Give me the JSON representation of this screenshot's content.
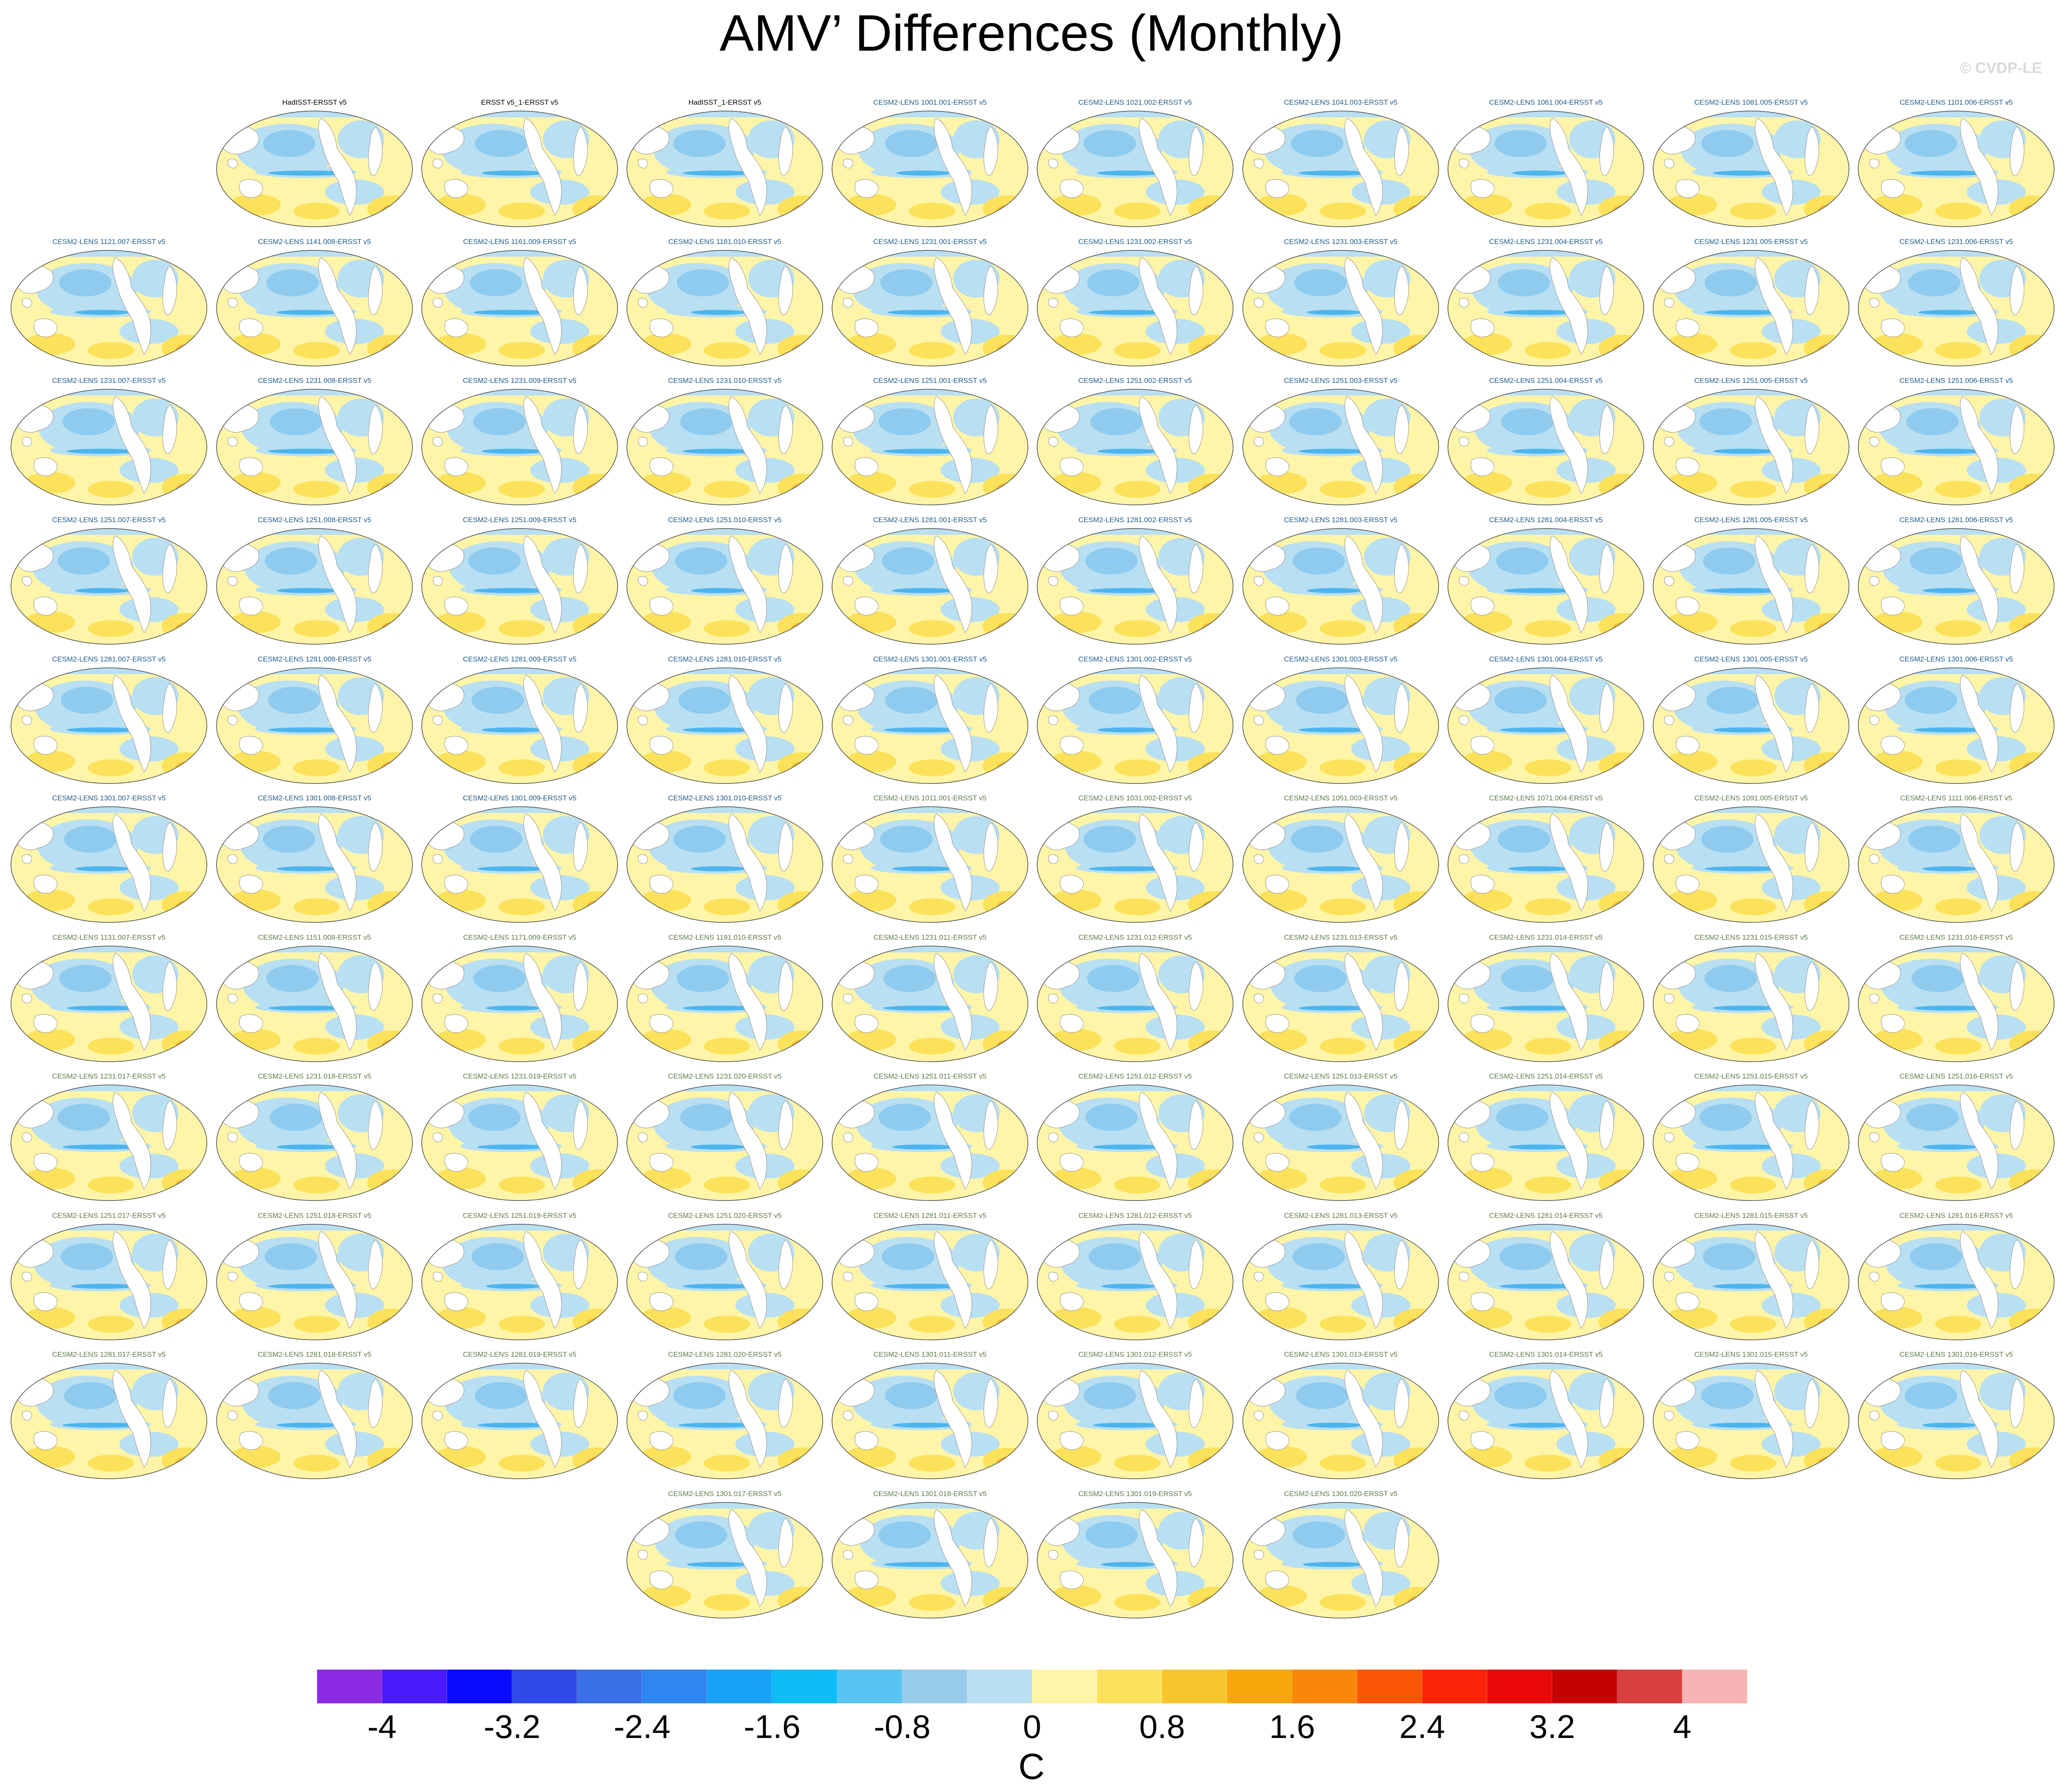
{
  "title": "AMV’ Differences (Monthly)",
  "credit": "© CVDP-LE",
  "colors": {
    "background": "#ffffff",
    "map_ocean_base": "#fff5a8",
    "map_blue_light": "#b9dff2",
    "map_blue_mid": "#8ecbee",
    "map_blue_dark": "#4db5ee",
    "map_warm": "#fbe25a",
    "map_warm_dark": "#f6b92f",
    "land": "#ffffff",
    "coast": "#8c8c8c"
  },
  "panels": [
    {
      "label": "HadISST-ERSST v5",
      "style": "obs"
    },
    {
      "label": "ERSST v5_1-ERSST v5",
      "style": "obs"
    },
    {
      "label": "HadISST_1-ERSST v5",
      "style": "obs"
    },
    {
      "label": "CESM2-LENS 1001.001-ERSST v5",
      "style": "c1"
    },
    {
      "label": "CESM2-LENS 1021.002-ERSST v5",
      "style": "c1"
    },
    {
      "label": "CESM2-LENS 1041.003-ERSST v5",
      "style": "c1"
    },
    {
      "label": "CESM2-LENS 1061.004-ERSST v5",
      "style": "c1"
    },
    {
      "label": "CESM2-LENS 1081.005-ERSST v5",
      "style": "c1"
    },
    {
      "label": "CESM2-LENS 1101.006-ERSST v5",
      "style": "c1"
    },
    {
      "label": "CESM2-LENS 1121.007-ERSST v5",
      "style": "c1"
    },
    {
      "label": "CESM2-LENS 1141.008-ERSST v5",
      "style": "c1"
    },
    {
      "label": "CESM2-LENS 1161.009-ERSST v5",
      "style": "c1"
    },
    {
      "label": "CESM2-LENS 1181.010-ERSST v5",
      "style": "c1"
    },
    {
      "label": "CESM2-LENS 1231.001-ERSST v5",
      "style": "c1"
    },
    {
      "label": "CESM2-LENS 1231.002-ERSST v5",
      "style": "c1"
    },
    {
      "label": "CESM2-LENS 1231.003-ERSST v5",
      "style": "c1"
    },
    {
      "label": "CESM2-LENS 1231.004-ERSST v5",
      "style": "c1"
    },
    {
      "label": "CESM2-LENS 1231.005-ERSST v5",
      "style": "c1"
    },
    {
      "label": "CESM2-LENS 1231.006-ERSST v5",
      "style": "c1"
    },
    {
      "label": "CESM2-LENS 1231.007-ERSST v5",
      "style": "c1"
    },
    {
      "label": "CESM2-LENS 1231.008-ERSST v5",
      "style": "c1"
    },
    {
      "label": "CESM2-LENS 1231.009-ERSST v5",
      "style": "c1"
    },
    {
      "label": "CESM2-LENS 1231.010-ERSST v5",
      "style": "c1"
    },
    {
      "label": "CESM2-LENS 1251.001-ERSST v5",
      "style": "c1"
    },
    {
      "label": "CESM2-LENS 1251.002-ERSST v5",
      "style": "c1"
    },
    {
      "label": "CESM2-LENS 1251.003-ERSST v5",
      "style": "c1"
    },
    {
      "label": "CESM2-LENS 1251.004-ERSST v5",
      "style": "c1"
    },
    {
      "label": "CESM2-LENS 1251.005-ERSST v5",
      "style": "c1"
    },
    {
      "label": "CESM2-LENS 1251.006-ERSST v5",
      "style": "c1"
    },
    {
      "label": "CESM2-LENS 1251.007-ERSST v5",
      "style": "c1"
    },
    {
      "label": "CESM2-LENS 1251.008-ERSST v5",
      "style": "c1"
    },
    {
      "label": "CESM2-LENS 1251.009-ERSST v5",
      "style": "c1"
    },
    {
      "label": "CESM2-LENS 1251.010-ERSST v5",
      "style": "c1"
    },
    {
      "label": "CESM2-LENS 1281.001-ERSST v5",
      "style": "c1"
    },
    {
      "label": "CESM2-LENS 1281.002-ERSST v5",
      "style": "c1"
    },
    {
      "label": "CESM2-LENS 1281.003-ERSST v5",
      "style": "c1"
    },
    {
      "label": "CESM2-LENS 1281.004-ERSST v5",
      "style": "c1"
    },
    {
      "label": "CESM2-LENS 1281.005-ERSST v5",
      "style": "c1"
    },
    {
      "label": "CESM2-LENS 1281.006-ERSST v5",
      "style": "c1"
    },
    {
      "label": "CESM2-LENS 1281.007-ERSST v5",
      "style": "c1"
    },
    {
      "label": "CESM2-LENS 1281.008-ERSST v5",
      "style": "c1"
    },
    {
      "label": "CESM2-LENS 1281.009-ERSST v5",
      "style": "c1"
    },
    {
      "label": "CESM2-LENS 1281.010-ERSST v5",
      "style": "c1"
    },
    {
      "label": "CESM2-LENS 1301.001-ERSST v5",
      "style": "c1"
    },
    {
      "label": "CESM2-LENS 1301.002-ERSST v5",
      "style": "c1"
    },
    {
      "label": "CESM2-LENS 1301.003-ERSST v5",
      "style": "c1"
    },
    {
      "label": "CESM2-LENS 1301.004-ERSST v5",
      "style": "c1"
    },
    {
      "label": "CESM2-LENS 1301.005-ERSST v5",
      "style": "c1"
    },
    {
      "label": "CESM2-LENS 1301.006-ERSST v5",
      "style": "c1"
    },
    {
      "label": "CESM2-LENS 1301.007-ERSST v5",
      "style": "c1"
    },
    {
      "label": "CESM2-LENS 1301.008-ERSST v5",
      "style": "c1"
    },
    {
      "label": "CESM2-LENS 1301.009-ERSST v5",
      "style": "c1"
    },
    {
      "label": "CESM2-LENS 1301.010-ERSST v5",
      "style": "c1"
    },
    {
      "label": "CESM2-LENS 1011.001-ERSST v5",
      "style": "c2"
    },
    {
      "label": "CESM2-LENS 1031.002-ERSST v5",
      "style": "c2"
    },
    {
      "label": "CESM2-LENS 1051.003-ERSST v5",
      "style": "c2"
    },
    {
      "label": "CESM2-LENS 1071.004-ERSST v5",
      "style": "c2"
    },
    {
      "label": "CESM2-LENS 1091.005-ERSST v5",
      "style": "c2"
    },
    {
      "label": "CESM2-LENS 1111.006-ERSST v5",
      "style": "c2"
    },
    {
      "label": "CESM2-LENS 1131.007-ERSST v5",
      "style": "c2"
    },
    {
      "label": "CESM2-LENS 1151.008-ERSST v5",
      "style": "c2"
    },
    {
      "label": "CESM2-LENS 1171.009-ERSST v5",
      "style": "c2"
    },
    {
      "label": "CESM2-LENS 1191.010-ERSST v5",
      "style": "c2"
    },
    {
      "label": "CESM2-LENS 1231.011-ERSST v5",
      "style": "c2"
    },
    {
      "label": "CESM2-LENS 1231.012-ERSST v5",
      "style": "c2"
    },
    {
      "label": "CESM2-LENS 1231.013-ERSST v5",
      "style": "c2"
    },
    {
      "label": "CESM2-LENS 1231.014-ERSST v5",
      "style": "c2"
    },
    {
      "label": "CESM2-LENS 1231.015-ERSST v5",
      "style": "c2"
    },
    {
      "label": "CESM2-LENS 1231.016-ERSST v5",
      "style": "c2"
    },
    {
      "label": "CESM2-LENS 1231.017-ERSST v5",
      "style": "c2"
    },
    {
      "label": "CESM2-LENS 1231.018-ERSST v5",
      "style": "c2"
    },
    {
      "label": "CESM2-LENS 1231.019-ERSST v5",
      "style": "c2"
    },
    {
      "label": "CESM2-LENS 1231.020-ERSST v5",
      "style": "c2"
    },
    {
      "label": "CESM2-LENS 1251.011-ERSST v5",
      "style": "c2"
    },
    {
      "label": "CESM2-LENS 1251.012-ERSST v5",
      "style": "c2"
    },
    {
      "label": "CESM2-LENS 1251.013-ERSST v5",
      "style": "c2"
    },
    {
      "label": "CESM2-LENS 1251.014-ERSST v5",
      "style": "c2"
    },
    {
      "label": "CESM2-LENS 1251.015-ERSST v5",
      "style": "c2"
    },
    {
      "label": "CESM2-LENS 1251.016-ERSST v5",
      "style": "c2"
    },
    {
      "label": "CESM2-LENS 1251.017-ERSST v5",
      "style": "c2"
    },
    {
      "label": "CESM2-LENS 1251.018-ERSST v5",
      "style": "c2"
    },
    {
      "label": "CESM2-LENS 1251.019-ERSST v5",
      "style": "c2"
    },
    {
      "label": "CESM2-LENS 1251.020-ERSST v5",
      "style": "c2"
    },
    {
      "label": "CESM2-LENS 1281.011-ERSST v5",
      "style": "c2"
    },
    {
      "label": "CESM2-LENS 1281.012-ERSST v5",
      "style": "c2"
    },
    {
      "label": "CESM2-LENS 1281.013-ERSST v5",
      "style": "c2"
    },
    {
      "label": "CESM2-LENS 1281.014-ERSST v5",
      "style": "c2"
    },
    {
      "label": "CESM2-LENS 1281.015-ERSST v5",
      "style": "c2"
    },
    {
      "label": "CESM2-LENS 1281.016-ERSST v5",
      "style": "c2"
    },
    {
      "label": "CESM2-LENS 1281.017-ERSST v5",
      "style": "c2"
    },
    {
      "label": "CESM2-LENS 1281.018-ERSST v5",
      "style": "c2"
    },
    {
      "label": "CESM2-LENS 1281.019-ERSST v5",
      "style": "c2"
    },
    {
      "label": "CESM2-LENS 1281.020-ERSST v5",
      "style": "c2"
    },
    {
      "label": "CESM2-LENS 1301.011-ERSST v5",
      "style": "c2"
    },
    {
      "label": "CESM2-LENS 1301.012-ERSST v5",
      "style": "c2"
    },
    {
      "label": "CESM2-LENS 1301.013-ERSST v5",
      "style": "c2"
    },
    {
      "label": "CESM2-LENS 1301.014-ERSST v5",
      "style": "c2"
    },
    {
      "label": "CESM2-LENS 1301.015-ERSST v5",
      "style": "c2"
    },
    {
      "label": "CESM2-LENS 1301.016-ERSST v5",
      "style": "c2"
    },
    {
      "label": "CESM2-LENS 1301.017-ERSST v5",
      "style": "c2"
    },
    {
      "label": "CESM2-LENS 1301.018-ERSST v5",
      "style": "c2"
    },
    {
      "label": "CESM2-LENS 1301.019-ERSST v5",
      "style": "c2"
    },
    {
      "label": "CESM2-LENS 1301.020-ERSST v5",
      "style": "c2"
    }
  ],
  "colorbar": {
    "colors": [
      "#8a2be2",
      "#4b1aff",
      "#0a0aff",
      "#2f4ae8",
      "#3a6fe6",
      "#2e86f2",
      "#1aa2f8",
      "#0bbcf5",
      "#58c4f2",
      "#98cbea",
      "#b9dff2",
      "#fff5a8",
      "#fbe25a",
      "#f6c52c",
      "#f6a60a",
      "#f8870a",
      "#fb5508",
      "#fb2308",
      "#e80808",
      "#c40000",
      "#d84040",
      "#f7b4b4"
    ],
    "labels": [
      "-4",
      "-3.2",
      "-2.4",
      "-1.6",
      "-0.8",
      "0",
      "0.8",
      "1.6",
      "2.4",
      "3.2",
      "4"
    ],
    "units": "C"
  }
}
